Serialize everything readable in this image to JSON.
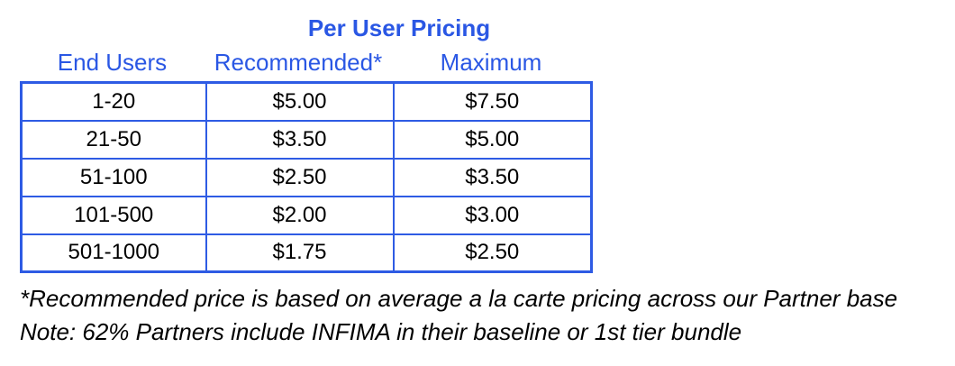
{
  "title": "Per User Pricing",
  "table": {
    "headers": {
      "end_users": "End Users",
      "recommended": "Recommended*",
      "maximum": "Maximum"
    },
    "rows": [
      {
        "end_users": "1-20",
        "recommended": "$5.00",
        "maximum": "$7.50"
      },
      {
        "end_users": "21-50",
        "recommended": "$3.50",
        "maximum": "$5.00"
      },
      {
        "end_users": "51-100",
        "recommended": "$2.50",
        "maximum": "$3.50"
      },
      {
        "end_users": "101-500",
        "recommended": "$2.00",
        "maximum": "$3.00"
      },
      {
        "end_users": "501-1000",
        "recommended": "$1.75",
        "maximum": "$2.50"
      }
    ]
  },
  "footnotes": {
    "recommended_note": "*Recommended price is based on average a la carte pricing across our Partner base",
    "bundle_note": "Note: 62% Partners include INFIMA in their baseline or 1st tier bundle"
  },
  "colors": {
    "accent_blue": "#2a57e4",
    "border_blue": "#2e5be4",
    "highlight_gray": "#d9d9d9",
    "body_text": "#000000",
    "background": "#ffffff"
  }
}
